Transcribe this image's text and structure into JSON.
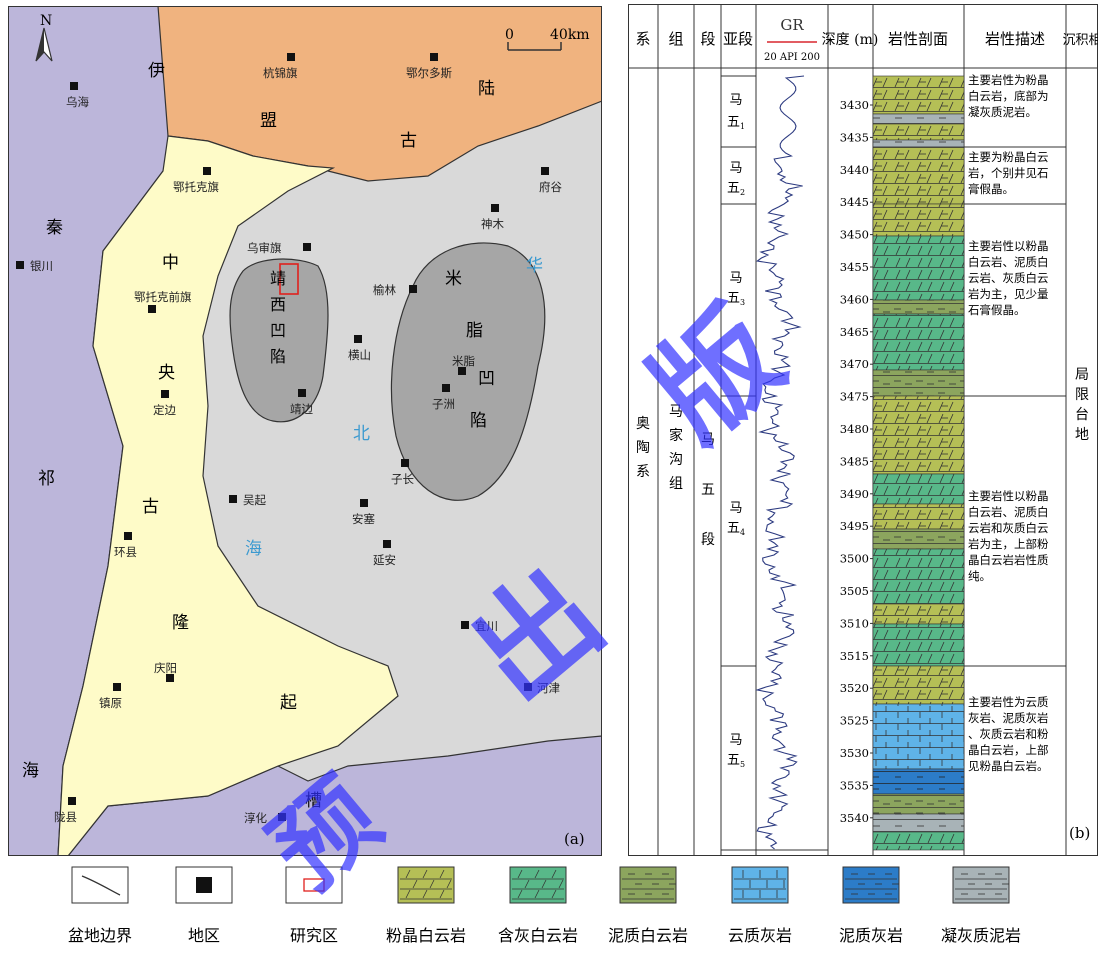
{
  "map": {
    "panel_label": "(a)",
    "north": "N",
    "scale": {
      "zero": "0",
      "distance": "40km"
    },
    "regions": {
      "yimeng": [
        "伊",
        "盟",
        "陆",
        "古"
      ],
      "qinqi": [
        "秦",
        "祁",
        "海"
      ],
      "zhongyang": [
        "中",
        "央",
        "古",
        "隆",
        "起"
      ],
      "huabei": [
        "华",
        "北",
        "海"
      ],
      "cao": "槽",
      "jingxi": "靖西凹陷",
      "mizhi": [
        "米",
        "脂",
        "凹",
        "陷"
      ]
    },
    "cities": [
      "乌海",
      "杭锦旗",
      "鄂尔多斯",
      "鄂托克旗",
      "府谷",
      "神木",
      "银川",
      "乌审旗",
      "榆林",
      "鄂托克前旗",
      "横山",
      "米脂",
      "靖边",
      "子洲",
      "定边",
      "子长",
      "吴起",
      "安塞",
      "延安",
      "环县",
      "宜川",
      "庆阳",
      "河津",
      "镇原",
      "淳化",
      "陇县"
    ],
    "colors": {
      "land": "#f0b37f",
      "ancient_uplift": "#fefbc8",
      "sea_basin": "#d9d9d9",
      "qinqi_sea": "#bcb6da",
      "depression": "#a6a6a6",
      "study_area": "#e0211d",
      "blue_label": "#3c9ad0"
    }
  },
  "column": {
    "panel_label": "(b)",
    "headers": {
      "xi": "系",
      "zu": "组",
      "duan": "段",
      "yaduan": "亚段",
      "gr": "GR",
      "gr_scale": "20 API 200",
      "depth": "深度 (m)",
      "profile": "岩性剖面",
      "desc": "岩性描述",
      "facies": "沉积相"
    },
    "xi": "奥陶系",
    "zu": "马家沟组",
    "duan": "马五段",
    "subsections": [
      {
        "main": "马五",
        "sub": "1"
      },
      {
        "main": "马五",
        "sub": "2"
      },
      {
        "main": "马五",
        "sub": "3"
      },
      {
        "main": "马五",
        "sub": "4"
      },
      {
        "main": "马五",
        "sub": "5"
      }
    ],
    "depth_ticks": [
      "3430",
      "3435",
      "3440",
      "3445",
      "3450",
      "3455",
      "3460",
      "3465",
      "3470",
      "3475",
      "3480",
      "3485",
      "3490",
      "3495",
      "3500",
      "3505",
      "3510",
      "3515",
      "3520",
      "3525",
      "3530",
      "3535",
      "3540"
    ],
    "descriptions": [
      "主要岩性为粉晶白云岩，底部为凝灰质泥岩。",
      "主要为粉晶白云岩，个别井见石膏假晶。",
      "主要岩性以粉晶白云岩、泥质白云岩、灰质白云岩为主，见少量石膏假晶。",
      "主要岩性以粉晶白云岩、泥质白云岩和灰质白云岩为主，上部粉晶白云岩岩性质纯。",
      "主要岩性为云质灰岩、泥质灰岩、灰质云岩和粉晶白云岩，上部见粉晶白云岩。"
    ],
    "facies": "局限台地"
  },
  "legend": [
    "盆地边界",
    "地区",
    "研究区",
    "粉晶白云岩",
    "含灰白云岩",
    "泥质白云岩",
    "云质灰岩",
    "泥质灰岩",
    "凝灰质泥岩"
  ],
  "watermark": [
    "版",
    "出",
    "预",
    "槽"
  ]
}
